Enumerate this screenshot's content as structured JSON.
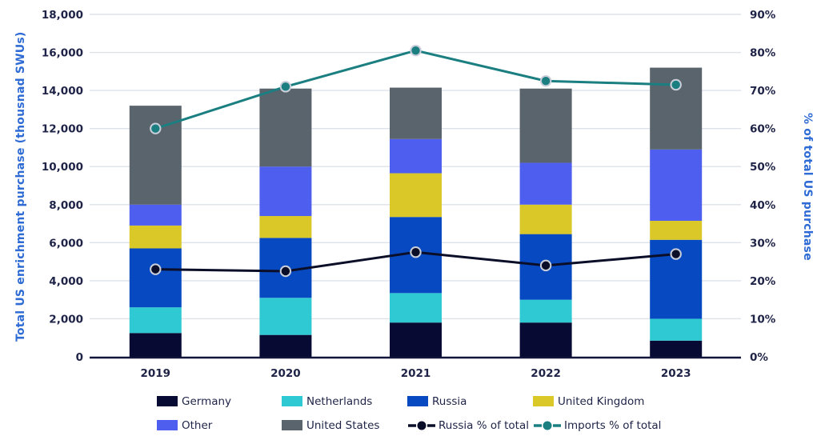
{
  "chart_data": {
    "type": "combo_stacked_bar_line",
    "title": "",
    "categories": [
      "2019",
      "2020",
      "2021",
      "2022",
      "2023"
    ],
    "left_axis": {
      "label": "Total US enrichment purchase (thousnad SWUs)",
      "min": 0,
      "max": 18000,
      "step": 2000,
      "tick_labels": [
        "0",
        "2,000",
        "4,000",
        "6,000",
        "8,000",
        "10,000",
        "12,000",
        "14,000",
        "16,000",
        "18,000"
      ]
    },
    "right_axis": {
      "label": "% of total US purchase",
      "min": 0,
      "max": 90,
      "step": 10,
      "tick_labels": [
        "0%",
        "10%",
        "20%",
        "30%",
        "40%",
        "50%",
        "60%",
        "70%",
        "80%",
        "90%"
      ]
    },
    "grid": "horizontal",
    "bar_series": [
      {
        "name": "Germany",
        "color": "#070A33",
        "values": [
          1250,
          1150,
          1800,
          1800,
          850
        ]
      },
      {
        "name": "Netherlands",
        "color": "#2FC9D3",
        "values": [
          1350,
          1950,
          1550,
          1200,
          1150
        ]
      },
      {
        "name": "Russia",
        "color": "#0749C0",
        "values": [
          3100,
          3150,
          4000,
          3450,
          4150
        ]
      },
      {
        "name": "United Kingdom",
        "color": "#D9C827",
        "values": [
          1200,
          1150,
          2300,
          1550,
          1000
        ]
      },
      {
        "name": "Other",
        "color": "#4E5FF0",
        "values": [
          1100,
          2600,
          1800,
          2200,
          3750
        ]
      },
      {
        "name": "United States",
        "color": "#5A646C",
        "values": [
          5200,
          4100,
          2700,
          3900,
          4300
        ]
      }
    ],
    "bar_totals": [
      13200,
      14100,
      14150,
      14100,
      15200
    ],
    "line_series": [
      {
        "name": "Russia % of total",
        "color": "#0A0E28",
        "axis": "right",
        "values": [
          23,
          22.5,
          27.5,
          24,
          27
        ]
      },
      {
        "name": "Imports % of total",
        "color": "#1B7F82",
        "axis": "right",
        "values": [
          60,
          71,
          80.5,
          72.5,
          71.5
        ]
      }
    ],
    "legend_order": [
      "Germany",
      "Netherlands",
      "Russia",
      "United Kingdom",
      "Other",
      "United States",
      "Russia % of total",
      "Imports % of total"
    ],
    "legend_position": "bottom",
    "style": {
      "gridline_color": "#DDE2EA",
      "axisline_color": "#11143B",
      "tick_label_color": "#1E2347",
      "axis_title_color": "#2E6BD4",
      "marker_ring_color": "#C9CEDA"
    }
  }
}
